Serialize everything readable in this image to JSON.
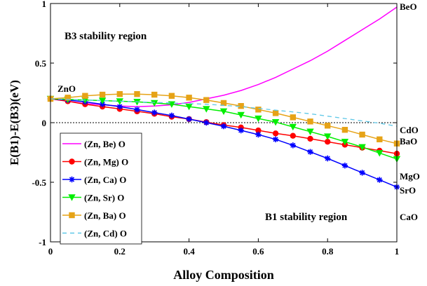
{
  "chart_data": {
    "type": "line",
    "xlabel": "Alloy Composition",
    "ylabel": "E(B1)-E(B3)(eV)",
    "xlim": [
      0,
      1
    ],
    "ylim": [
      -1,
      1
    ],
    "x_ticks": [
      0,
      0.2,
      0.4,
      0.6,
      0.8,
      1
    ],
    "x_tick_labels": [
      "0",
      "0.2",
      "0.4",
      "0.6",
      "0.8",
      "1"
    ],
    "y_ticks": [
      -1,
      -0.5,
      0,
      0.5,
      1
    ],
    "y_tick_labels": [
      "-1",
      "-0.5",
      "0",
      "0.5",
      "1"
    ],
    "grid": false,
    "reference_line": 0,
    "legend_position": "lower-left",
    "annotations": [
      {
        "text": "B3 stability region",
        "x": 0.04,
        "y": 0.72
      },
      {
        "text": "B1 stability region",
        "x": 0.62,
        "y": -0.75
      },
      {
        "text": "ZnO",
        "x": 0.06,
        "y": 0.25
      }
    ],
    "series": [
      {
        "name": "(Zn, Be) O",
        "end_label": "BeO",
        "color": "#ff00ff",
        "marker": "none",
        "dash": "solid",
        "x": [
          0,
          0.05,
          0.1,
          0.15,
          0.2,
          0.25,
          0.3,
          0.35,
          0.4,
          0.45,
          0.5,
          0.55,
          0.6,
          0.65,
          0.7,
          0.75,
          0.8,
          0.85,
          0.9,
          0.95,
          1
        ],
        "values": [
          0.2,
          0.18,
          0.16,
          0.15,
          0.14,
          0.135,
          0.14,
          0.15,
          0.17,
          0.2,
          0.23,
          0.27,
          0.32,
          0.38,
          0.45,
          0.52,
          0.6,
          0.69,
          0.78,
          0.87,
          0.97
        ]
      },
      {
        "name": "(Zn, Mg) O",
        "end_label": "MgO",
        "color": "#ff0000",
        "marker": "circle",
        "dash": "solid",
        "x": [
          0,
          0.05,
          0.1,
          0.15,
          0.2,
          0.25,
          0.3,
          0.35,
          0.4,
          0.45,
          0.5,
          0.55,
          0.6,
          0.65,
          0.7,
          0.75,
          0.8,
          0.85,
          0.9,
          0.95,
          1
        ],
        "values": [
          0.2,
          0.18,
          0.155,
          0.135,
          0.115,
          0.095,
          0.075,
          0.05,
          0.03,
          0.005,
          -0.02,
          -0.04,
          -0.065,
          -0.09,
          -0.11,
          -0.135,
          -0.16,
          -0.185,
          -0.21,
          -0.235,
          -0.26
        ]
      },
      {
        "name": "(Zn, Ca) O",
        "end_label": "CaO",
        "color": "#0000ff",
        "marker": "star",
        "dash": "solid",
        "x": [
          0,
          0.05,
          0.1,
          0.15,
          0.2,
          0.25,
          0.3,
          0.35,
          0.4,
          0.45,
          0.5,
          0.55,
          0.6,
          0.65,
          0.7,
          0.75,
          0.8,
          0.85,
          0.9,
          0.95,
          1
        ],
        "values": [
          0.2,
          0.19,
          0.175,
          0.155,
          0.135,
          0.11,
          0.085,
          0.06,
          0.03,
          0.0,
          -0.03,
          -0.065,
          -0.1,
          -0.14,
          -0.19,
          -0.245,
          -0.3,
          -0.36,
          -0.42,
          -0.48,
          -0.54
        ]
      },
      {
        "name": "(Zn, Sr) O",
        "end_label": "SrO",
        "color": "#00ee00",
        "marker": "triangle-down",
        "dash": "solid",
        "x": [
          0,
          0.05,
          0.1,
          0.15,
          0.2,
          0.25,
          0.3,
          0.35,
          0.4,
          0.45,
          0.5,
          0.55,
          0.6,
          0.65,
          0.7,
          0.75,
          0.8,
          0.85,
          0.9,
          0.95,
          1
        ],
        "values": [
          0.2,
          0.195,
          0.19,
          0.185,
          0.18,
          0.175,
          0.165,
          0.155,
          0.135,
          0.115,
          0.095,
          0.065,
          0.035,
          0.005,
          -0.035,
          -0.075,
          -0.115,
          -0.16,
          -0.205,
          -0.255,
          -0.305
        ]
      },
      {
        "name": "(Zn, Ba) O",
        "end_label": "BaO",
        "color": "#e6a317",
        "marker": "square",
        "dash": "solid",
        "x": [
          0,
          0.05,
          0.1,
          0.15,
          0.2,
          0.25,
          0.3,
          0.35,
          0.4,
          0.45,
          0.5,
          0.55,
          0.6,
          0.65,
          0.7,
          0.75,
          0.8,
          0.85,
          0.9,
          0.95,
          1
        ],
        "values": [
          0.2,
          0.21,
          0.225,
          0.235,
          0.24,
          0.24,
          0.235,
          0.225,
          0.21,
          0.19,
          0.165,
          0.14,
          0.11,
          0.08,
          0.045,
          0.01,
          -0.025,
          -0.06,
          -0.1,
          -0.14,
          -0.175
        ]
      },
      {
        "name": "(Zn, Cd) O",
        "end_label": "CdO",
        "color": "#5fc8e8",
        "marker": "none",
        "dash": "dashed",
        "x": [
          0,
          0.05,
          0.1,
          0.15,
          0.2,
          0.25,
          0.3,
          0.35,
          0.4,
          0.45,
          0.5,
          0.55,
          0.6,
          0.65,
          0.7,
          0.75,
          0.8,
          0.85,
          0.9,
          0.95,
          1
        ],
        "values": [
          0.2,
          0.195,
          0.19,
          0.185,
          0.18,
          0.175,
          0.17,
          0.165,
          0.16,
          0.155,
          0.145,
          0.135,
          0.12,
          0.105,
          0.09,
          0.075,
          0.055,
          0.035,
          0.015,
          -0.005,
          -0.03
        ]
      }
    ]
  }
}
